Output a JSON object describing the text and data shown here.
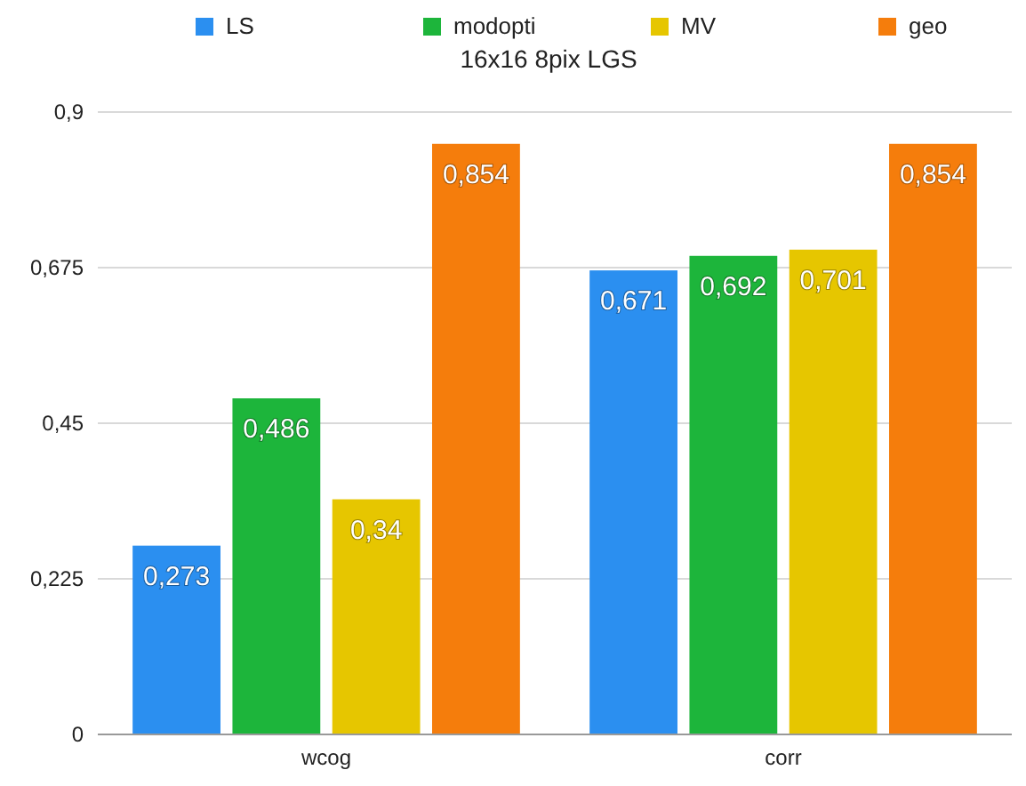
{
  "chart_data": {
    "type": "bar",
    "title": "16x16 8pix LGS",
    "categories": [
      "wcog",
      "corr"
    ],
    "series": [
      {
        "name": "LS",
        "color": "#2b8ff0",
        "values": [
          0.273,
          0.671
        ],
        "value_labels": [
          "0,273",
          "0,671"
        ]
      },
      {
        "name": "modopti",
        "color": "#1db53b",
        "values": [
          0.486,
          0.692
        ],
        "value_labels": [
          "0,486",
          "0,692"
        ]
      },
      {
        "name": "MV",
        "color": "#e6c600",
        "values": [
          0.34,
          0.701
        ],
        "value_labels": [
          "0,34",
          "0,701"
        ]
      },
      {
        "name": "geo",
        "color": "#f57d0c",
        "values": [
          0.854,
          0.854
        ],
        "value_labels": [
          "0,854",
          "0,854"
        ]
      }
    ],
    "ylim": [
      0,
      0.9
    ],
    "yticks": [
      0,
      {
        "value": 0.225,
        "label": "0,225"
      },
      {
        "value": 0.45,
        "label": "0,45"
      },
      {
        "value": 0.675,
        "label": "0,675"
      },
      {
        "value": 0.9,
        "label": "0,9"
      }
    ],
    "grid": "y",
    "legend": "top"
  }
}
